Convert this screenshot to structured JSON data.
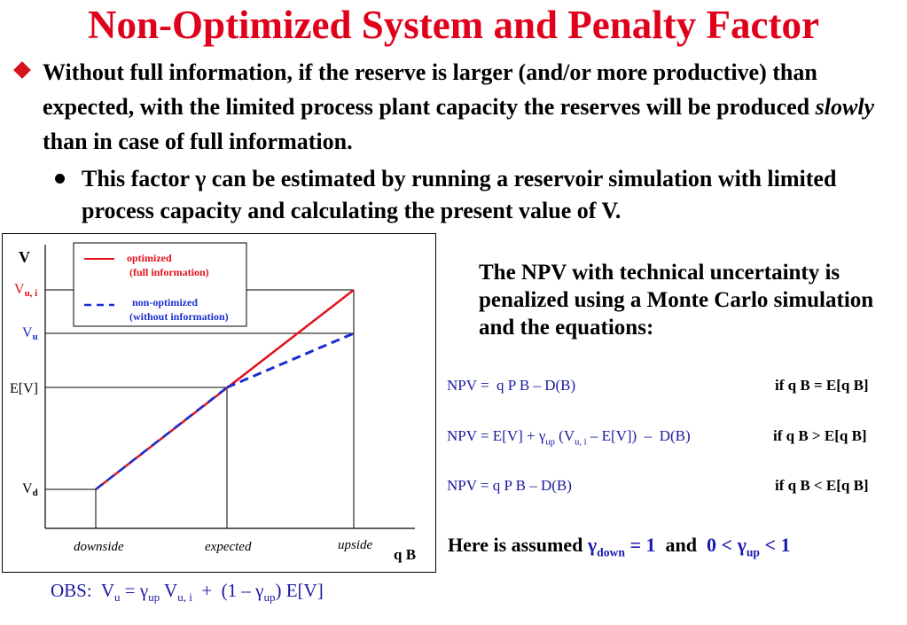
{
  "title": "Non-Optimized System and Penalty Factor",
  "bullet1": {
    "pre": "Without full information, if the reserve is larger (and/or more productive) than expected, with the limited process plant capacity the reserves will be produced ",
    "em": "slowly",
    "post": " than in case of full information."
  },
  "bullet2": {
    "pre": "This factor ",
    "gamma": "γ",
    "post": " can be estimated by running a reservoir simulation with limited process capacity and calculating the present value of V."
  },
  "chart": {
    "y_axis_label": "V",
    "y_labels": {
      "vui_main": "V",
      "vui_sub": "u, i",
      "vu_main": "V",
      "vu_sub": "u",
      "ev": "E[V]",
      "vd_main": "V",
      "vd_sub": "d"
    },
    "x_labels": {
      "downside": "downside",
      "expected": "expected",
      "upside": "upside"
    },
    "x_axis_label": "q B",
    "legend": {
      "optimized_l1": "optimized",
      "optimized_l2": "(full information)",
      "nonopt_l1": "non-optimized",
      "nonopt_l2": "(without information)"
    },
    "colors": {
      "optimized": "#e0121b",
      "non_optimized": "#1a2fd0"
    }
  },
  "npv_note": "The NPV with technical uncertainty is penalized using a Monte Carlo simulation and the equations:",
  "equations": [
    {
      "text": "NPV =  q P B – D(B)",
      "condition": "if  q B = E[q B]"
    },
    {
      "text": "NPV = E[V] + γup (Vu, i – E[V])  –  D(B)",
      "condition": "if  q B > E[q B]"
    },
    {
      "text": "NPV = q P B – D(B)",
      "condition": "if  q B < E[q B]"
    }
  ],
  "assumed": {
    "pre": "Here is assumed ",
    "gamma": "γ",
    "down_sub": "down",
    "eq1": " = 1",
    "and": "  and  ",
    "range_pre": "0 < ",
    "up_sub": "up",
    "range_post": " < 1"
  },
  "obs": {
    "label": "OBS:  ",
    "v": "V",
    "u": "u",
    "eq": " = ",
    "gamma": "γ",
    "up": "up",
    "vui_sub": "u, i",
    "plus": "  +  (1 – ",
    "close": ") E[V]"
  }
}
